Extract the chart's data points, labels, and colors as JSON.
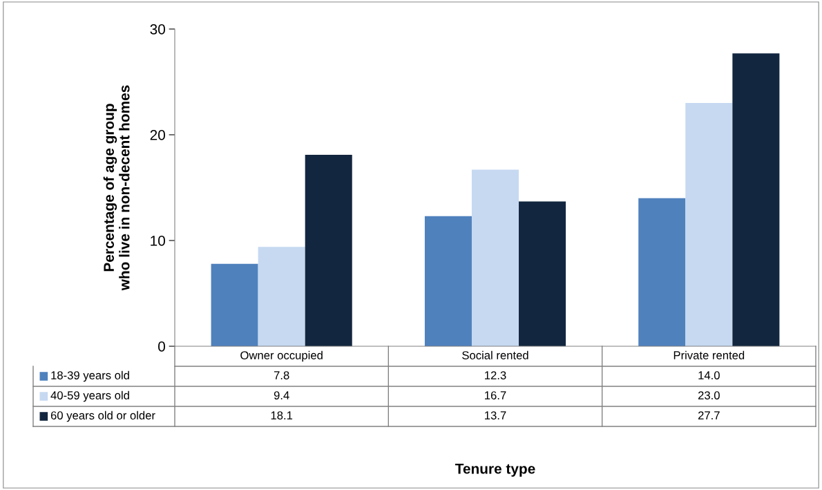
{
  "chart_data": {
    "type": "bar",
    "ylabel": "Percentage of age group\nwho live in non-decent homes",
    "annotations": [
      "Tenure type"
    ],
    "categories": [
      "Owner occupied",
      "Social rented",
      "Private rented"
    ],
    "series": [
      {
        "name": "18-39 years old",
        "color": "#4f81bd",
        "values": [
          7.8,
          12.3,
          14.0
        ],
        "value_labels": [
          "7.8",
          "12.3",
          "14.0"
        ]
      },
      {
        "name": "40-59 years old",
        "color": "#c6d9f1",
        "values": [
          9.4,
          16.7,
          23.0
        ],
        "value_labels": [
          "9.4",
          "16.7",
          "23.0"
        ]
      },
      {
        "name": "60 years old or older",
        "color": "#12263f",
        "values": [
          18.1,
          13.7,
          27.7
        ],
        "value_labels": [
          "18.1",
          "13.7",
          "27.7"
        ]
      }
    ],
    "ylim": [
      0,
      30
    ],
    "yticks": [
      0,
      10,
      20,
      30
    ],
    "grid": false,
    "legend": "bottom left"
  }
}
